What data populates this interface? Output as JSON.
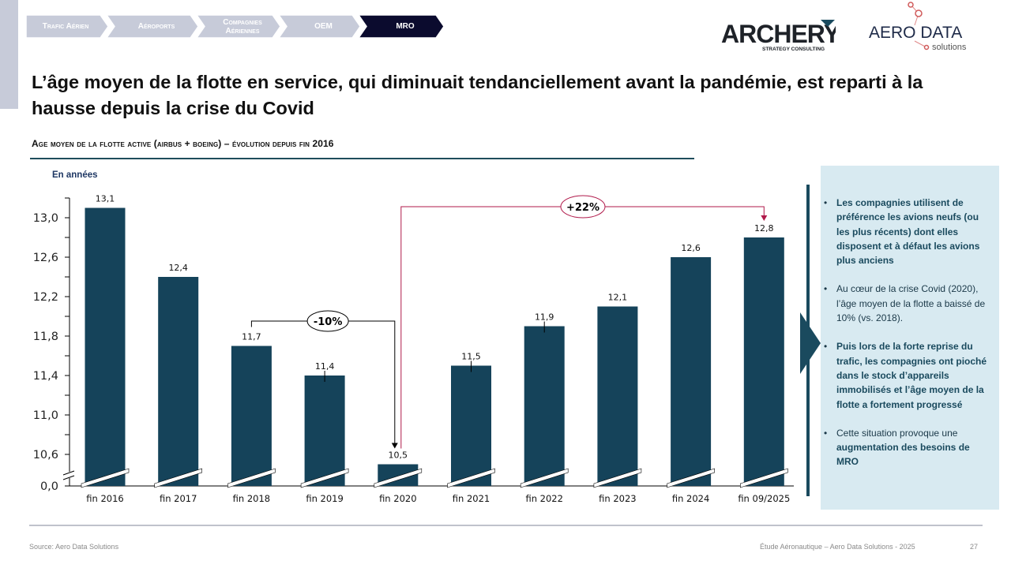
{
  "nav": {
    "steps": [
      {
        "label": "Trafic Aérien",
        "active": false
      },
      {
        "label": "Aéroports",
        "active": false
      },
      {
        "label": "Compagnies Aériennes",
        "active": false
      },
      {
        "label": "OEM",
        "active": false
      },
      {
        "label": "MRO",
        "active": true
      }
    ]
  },
  "logos": {
    "archery": {
      "name": "ARCHERY",
      "tagline": "STRATEGY CONSULTING"
    },
    "aero": {
      "name": "AERO DATA",
      "tagline": "solutions"
    }
  },
  "title": "L’âge moyen de la flotte en service, qui diminuait tendanciellement avant la pandémie, est reparti à la hausse depuis la crise du Covid",
  "subtitle": "Age moyen de la flotte active (airbus + boeing) – évolution depuis fin 2016",
  "unit_label": "En années",
  "colors": {
    "bar": "#15435a",
    "decrease_annotation": "#000000",
    "increase_annotation": "#b0194a",
    "panel_bg": "#d8eaf1",
    "nav_inactive": "#c7cbd9",
    "nav_active": "#0b0b2e"
  },
  "chart_data": {
    "type": "bar",
    "title": "Age moyen de la flotte active (Airbus + Boeing) – évolution depuis fin 2016",
    "xlabel": "",
    "ylabel": "En années",
    "categories": [
      "fin 2016",
      "fin 2017",
      "fin 2018",
      "fin 2019",
      "fin 2020",
      "fin 2021",
      "fin 2022",
      "fin 2023",
      "fin 2024",
      "fin 09/2025"
    ],
    "values": [
      13.1,
      12.4,
      11.7,
      11.4,
      10.5,
      11.5,
      11.9,
      12.1,
      12.6,
      12.8
    ],
    "value_labels": [
      "13,1",
      "12,4",
      "11,7",
      "11,4",
      "10,5",
      "11,5",
      "11,9",
      "12,1",
      "12,6",
      "12,8"
    ],
    "y_ticks": [
      0.0,
      10.6,
      11.0,
      11.4,
      11.8,
      12.2,
      12.6,
      13.0
    ],
    "y_tick_labels": [
      "0,0",
      "10,6",
      "11,0",
      "11,4",
      "11,8",
      "12,2",
      "12,6",
      "13,0"
    ],
    "ylim": [
      10.3,
      13.2
    ],
    "axis_break": true,
    "grid": false,
    "annotations": [
      {
        "label": "-10%",
        "from": "fin 2018",
        "to": "fin 2020",
        "type": "decrease"
      },
      {
        "label": "+22%",
        "from": "fin 2020",
        "to": "fin 09/2025",
        "type": "increase"
      }
    ]
  },
  "side_panel": {
    "bullets": [
      [
        {
          "text": "Les compagnies utilisent de préférence les avions neufs (ou les plus récents) dont elles disposent et à défaut les avions plus anciens",
          "bold": true
        }
      ],
      [
        {
          "text": "Au cœur de la crise Covid (2020), l’âge moyen de la flotte a baissé de 10% (vs. 2018).",
          "bold": false
        }
      ],
      [
        {
          "text": "Puis lors de la forte reprise du trafic, les compagnies ont pioché dans le stock d’appareils immobilisés et l’âge moyen de la flotte a fortement progressé",
          "bold": true
        }
      ],
      [
        {
          "text": "Cette situation provoque une ",
          "bold": false
        },
        {
          "text": "augmentation des besoins de MRO",
          "bold": true
        }
      ]
    ]
  },
  "footer": {
    "source": "Source: Aero Data Solutions",
    "study": "Étude Aéronautique – Aero Data Solutions - 2025",
    "page": "27"
  }
}
